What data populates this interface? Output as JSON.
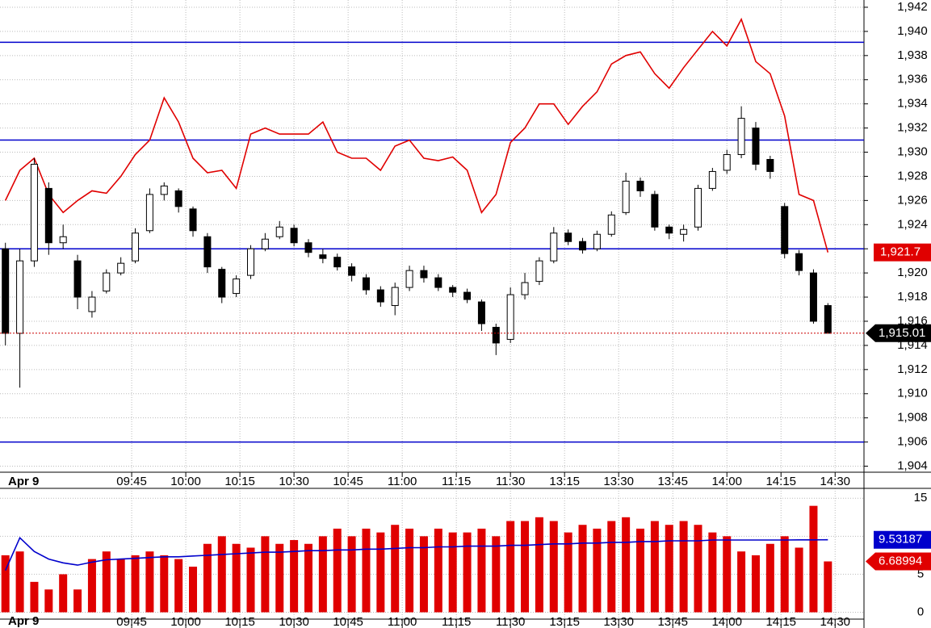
{
  "chart_data": {
    "type": "candlestick",
    "date_label": "Apr 9",
    "xlim": [
      -21.5,
      218
    ],
    "xticks": [
      {
        "value": 15,
        "label": "09:45"
      },
      {
        "value": 30,
        "label": "10:00"
      },
      {
        "value": 45,
        "label": "10:15"
      },
      {
        "value": 60,
        "label": "10:30"
      },
      {
        "value": 75,
        "label": "10:45"
      },
      {
        "value": 90,
        "label": "11:00"
      },
      {
        "value": 105,
        "label": "11:15"
      },
      {
        "value": 120,
        "label": "11:30"
      },
      {
        "value": 135,
        "label": "13:15"
      },
      {
        "value": 150,
        "label": "13:30"
      },
      {
        "value": 165,
        "label": "13:45"
      },
      {
        "value": 180,
        "label": "14:00"
      },
      {
        "value": 195,
        "label": "14:15"
      },
      {
        "value": 210,
        "label": "14:30"
      }
    ],
    "ylim": [
      1903.5,
      1942.6
    ],
    "yticks": [
      {
        "value": 1904,
        "label": "1,904"
      },
      {
        "value": 1906,
        "label": "1,906"
      },
      {
        "value": 1908,
        "label": "1,908"
      },
      {
        "value": 1910,
        "label": "1,910"
      },
      {
        "value": 1912,
        "label": "1,912"
      },
      {
        "value": 1914,
        "label": "1,914"
      },
      {
        "value": 1916,
        "label": "1,916"
      },
      {
        "value": 1918,
        "label": "1,918"
      },
      {
        "value": 1920,
        "label": "1,920"
      },
      {
        "value": 1922,
        "label": "1,922"
      },
      {
        "value": 1924,
        "label": "1,924"
      },
      {
        "value": 1926,
        "label": "1,926"
      },
      {
        "value": 1928,
        "label": "1,928"
      },
      {
        "value": 1930,
        "label": "1,930"
      },
      {
        "value": 1932,
        "label": "1,932"
      },
      {
        "value": 1934,
        "label": "1,934"
      },
      {
        "value": 1936,
        "label": "1,936"
      },
      {
        "value": 1938,
        "label": "1,938"
      },
      {
        "value": 1940,
        "label": "1,940"
      },
      {
        "value": 1942,
        "label": "1,942"
      }
    ],
    "grid": true,
    "hlines": {
      "color": "#0000cc",
      "values": [
        1939.1,
        1931,
        1922,
        1906
      ]
    },
    "x": [
      -20,
      -16,
      -12,
      -8,
      -4,
      0,
      4,
      8,
      12,
      16,
      20,
      24,
      28,
      32,
      36,
      40,
      44,
      48,
      52,
      56,
      60,
      64,
      68,
      72,
      76,
      80,
      84,
      88,
      92,
      96,
      100,
      104,
      108,
      112,
      116,
      120,
      124,
      128,
      132,
      136,
      140,
      144,
      148,
      152,
      156,
      160,
      164,
      168,
      172,
      176,
      180,
      184,
      188,
      192,
      196,
      200,
      204,
      208
    ],
    "open": [
      1922,
      1915,
      1921,
      1927,
      1922.5,
      1921,
      1916.8,
      1918.5,
      1920,
      1921,
      1923.5,
      1926.5,
      1926.8,
      1925.3,
      1923,
      1920.3,
      1918.3,
      1919.8,
      1922,
      1923,
      1923.7,
      1922.5,
      1921.5,
      1921.3,
      1920.5,
      1919.6,
      1918.6,
      1917.3,
      1918.8,
      1920.2,
      1919.6,
      1918.8,
      1918.4,
      1917.6,
      1915.5,
      1914.5,
      1918.2,
      1919.3,
      1921,
      1923.3,
      1922.6,
      1922,
      1923.2,
      1925,
      1927.6,
      1926.5,
      1923.8,
      1923.2,
      1923.8,
      1927,
      1928.5,
      1929.8,
      1932,
      1929.4,
      1925.5,
      1921.6,
      1920,
      1917.3
    ],
    "high": [
      1922.5,
      1922,
      1929.5,
      1927.5,
      1924,
      1921.5,
      1918.5,
      1920.3,
      1921.3,
      1923.7,
      1927,
      1927.5,
      1927,
      1925.5,
      1923.3,
      1920.5,
      1919.8,
      1922.3,
      1923.3,
      1924.3,
      1924,
      1922.8,
      1922,
      1921.6,
      1920.8,
      1919.9,
      1918.9,
      1919.2,
      1920.6,
      1920.6,
      1919.9,
      1919,
      1918.7,
      1917.8,
      1915.8,
      1918.8,
      1920,
      1921.3,
      1923.8,
      1923.6,
      1922.9,
      1923.5,
      1925.1,
      1928.3,
      1927.9,
      1926.8,
      1924,
      1924,
      1927.3,
      1928.7,
      1930.2,
      1933.8,
      1932.5,
      1929.7,
      1925.8,
      1921.9,
      1920.3,
      1917.5
    ],
    "low": [
      1914,
      1910.5,
      1920.5,
      1921.5,
      1922,
      1917,
      1916.3,
      1918.3,
      1919.8,
      1920.8,
      1923.3,
      1926,
      1925,
      1923,
      1920,
      1917.5,
      1918,
      1919.5,
      1921.8,
      1922.8,
      1922.2,
      1921.3,
      1920.8,
      1920.2,
      1919.3,
      1918.2,
      1917.2,
      1916.5,
      1918.5,
      1919.2,
      1918.5,
      1918,
      1917.5,
      1915.2,
      1913.2,
      1914.2,
      1917.8,
      1919,
      1920.8,
      1922.3,
      1921.6,
      1921.8,
      1923,
      1924.8,
      1926.3,
      1923.5,
      1922.8,
      1922.6,
      1923.5,
      1926.8,
      1928.2,
      1929.5,
      1928.5,
      1927.8,
      1921.2,
      1919.8,
      1915.8,
      1915
    ],
    "close": [
      1915,
      1921,
      1929,
      1922.5,
      1923,
      1918,
      1918,
      1920,
      1920.8,
      1923.3,
      1926.5,
      1927.2,
      1925.5,
      1923.5,
      1920.5,
      1918,
      1919.5,
      1922,
      1922.8,
      1923.8,
      1922.5,
      1921.7,
      1921.2,
      1920.5,
      1919.8,
      1918.6,
      1917.6,
      1918.8,
      1920.2,
      1919.6,
      1918.8,
      1918.4,
      1917.8,
      1915.8,
      1914.2,
      1918.2,
      1919.2,
      1921,
      1923.3,
      1922.6,
      1921.9,
      1923.2,
      1924.8,
      1927.6,
      1926.8,
      1923.8,
      1923.3,
      1923.6,
      1927,
      1928.4,
      1929.8,
      1932.8,
      1929,
      1928.4,
      1921.6,
      1920.2,
      1916,
      1915.01
    ],
    "close_label": "1,915.01",
    "overlay": {
      "color": "#e00000",
      "last_label": "1,921.7",
      "values": [
        1926,
        1928.5,
        1929.5,
        1926.5,
        1925,
        1926,
        1926.8,
        1926.6,
        1928,
        1929.8,
        1931,
        1934.5,
        1932.5,
        1929.5,
        1928.3,
        1928.5,
        1927,
        1931.5,
        1932,
        1931.5,
        1931.5,
        1931.5,
        1932.5,
        1930,
        1929.5,
        1929.5,
        1928.5,
        1930.5,
        1931,
        1929.5,
        1929.3,
        1929.6,
        1928.5,
        1925,
        1926.5,
        1930.8,
        1932,
        1934,
        1934,
        1932.3,
        1933.8,
        1935,
        1937.3,
        1938,
        1938.3,
        1936.5,
        1935.3,
        1937,
        1938.5,
        1940,
        1938.8,
        1941,
        1937.5,
        1936.5,
        1933,
        1926.5,
        1926,
        1921.7
      ]
    },
    "volume": {
      "color": "#e00000",
      "ylim": [
        -0.9,
        16.3
      ],
      "yticks": [
        0,
        5,
        10,
        15
      ],
      "values": [
        7.5,
        8,
        4,
        3,
        5,
        3,
        7,
        8,
        7,
        7.5,
        8,
        7.5,
        7,
        6,
        9,
        10,
        9,
        8.5,
        10,
        9,
        9.5,
        9,
        10,
        11,
        10,
        11,
        10.5,
        11.5,
        11,
        10,
        11,
        10.5,
        10.5,
        11,
        10,
        12,
        12,
        12.5,
        12,
        10.5,
        11.5,
        11,
        12,
        12.5,
        11,
        12,
        11.5,
        12,
        11.5,
        10.5,
        10,
        8,
        7.5,
        9,
        10,
        8.5,
        14,
        6.68994
      ],
      "average": {
        "color": "#0000cc",
        "values": [
          5.5,
          9.8,
          8,
          7,
          6.5,
          6.2,
          6.6,
          6.9,
          7,
          7.1,
          7.2,
          7.3,
          7.3,
          7.4,
          7.5,
          7.6,
          7.7,
          7.8,
          7.9,
          7.9,
          8,
          8.1,
          8.1,
          8.2,
          8.2,
          8.3,
          8.3,
          8.4,
          8.5,
          8.5,
          8.6,
          8.6,
          8.7,
          8.7,
          8.7,
          8.8,
          8.8,
          8.9,
          9,
          9,
          9.1,
          9.1,
          9.2,
          9.2,
          9.3,
          9.3,
          9.4,
          9.4,
          9.4,
          9.5,
          9.5,
          9.5,
          9.5,
          9.5,
          9.5,
          9.53,
          9.53,
          9.53187
        ]
      }
    }
  }
}
